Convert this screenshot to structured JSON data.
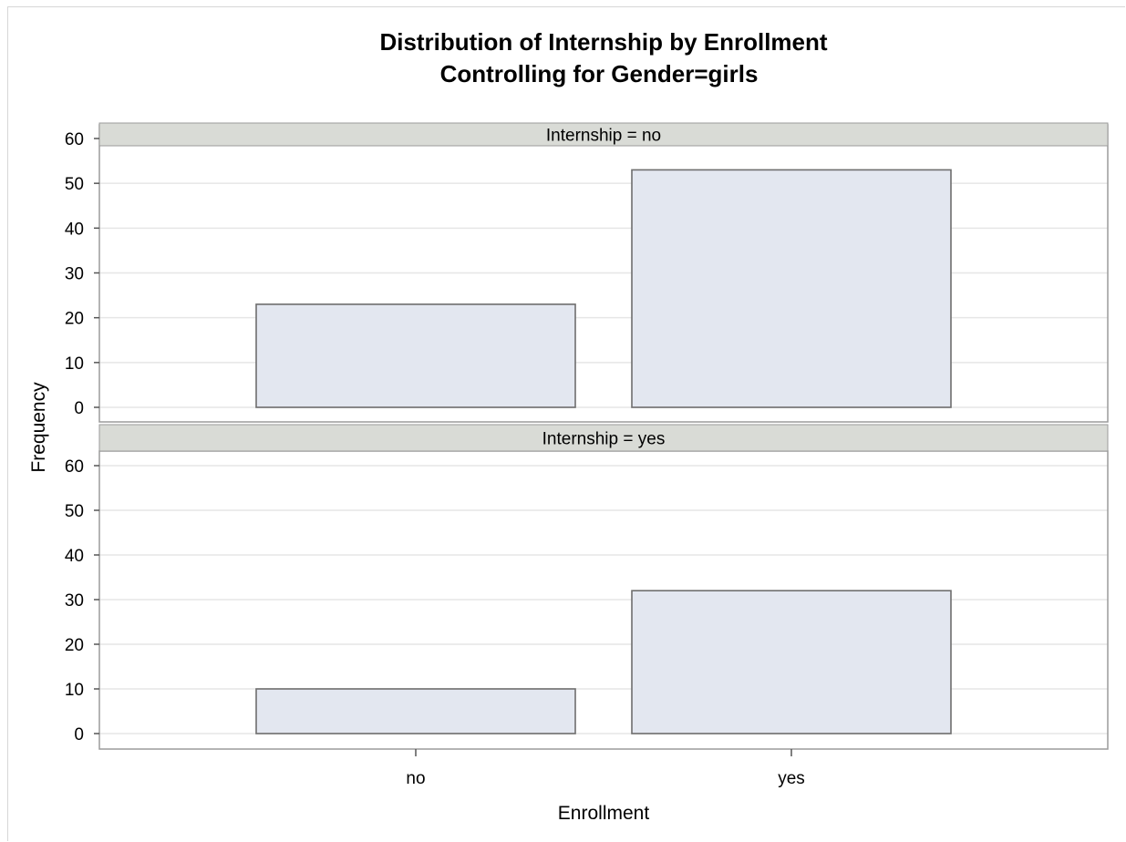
{
  "chart_data": {
    "type": "bar",
    "title": "Distribution of Internship by Enrollment",
    "subtitle": "Controlling for Gender=girls",
    "xlabel": "Enrollment",
    "ylabel": "Frequency",
    "categories": [
      "no",
      "yes"
    ],
    "ylim": [
      0,
      63
    ],
    "yticks": [
      0,
      10,
      20,
      30,
      40,
      50,
      60
    ],
    "grid": true,
    "panels": [
      {
        "label": "Internship = no",
        "values": [
          23,
          53
        ]
      },
      {
        "label": "Internship = yes",
        "values": [
          10,
          32
        ]
      }
    ],
    "colors": {
      "bar_fill": "#e3e7f0",
      "bar_stroke": "#6e6e6e",
      "header_fill": "#d9dbd6",
      "grid": "#e6e6e6",
      "frame": "#9b9b9b"
    }
  }
}
